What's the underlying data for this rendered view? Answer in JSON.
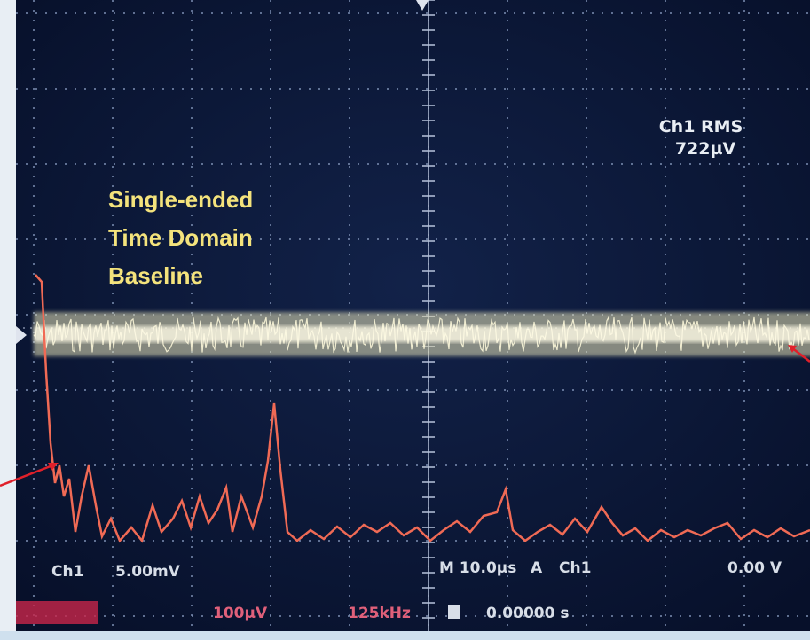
{
  "overlay": {
    "lines": [
      "Single-ended",
      "Time Domain",
      "Baseline"
    ]
  },
  "measurement": {
    "label": "Ch1 RMS",
    "value": "722µV"
  },
  "status_row_1": {
    "channel": "Ch1",
    "scale": "5.00mV",
    "timebase": "M 10.0µs",
    "trigger_mode": "A",
    "trigger_source": "Ch1",
    "trigger_level": "0.00 V"
  },
  "status_row_2": {
    "math_scale": "100µV",
    "sample_rate": "125kHz",
    "position": "0.00000 s"
  }
}
